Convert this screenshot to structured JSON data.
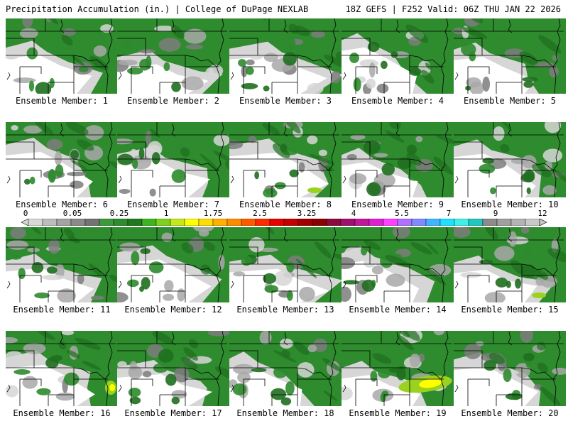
{
  "header": {
    "title_left": "Precipitation Accumulation (in.) | College of DuPage NEXLAB",
    "title_right": "18Z GEFS | F252 Valid: 06Z THU JAN 22 2026"
  },
  "members": [
    "Ensemble Member: 1",
    "Ensemble Member: 2",
    "Ensemble Member: 3",
    "Ensemble Member: 4",
    "Ensemble Member: 5",
    "Ensemble Member: 6",
    "Ensemble Member: 7",
    "Ensemble Member: 8",
    "Ensemble Member: 9",
    "Ensemble Member: 10",
    "Ensemble Member: 11",
    "Ensemble Member: 12",
    "Ensemble Member: 13",
    "Ensemble Member: 14",
    "Ensemble Member: 15",
    "Ensemble Member: 16",
    "Ensemble Member: 17",
    "Ensemble Member: 18",
    "Ensemble Member: 19",
    "Ensemble Member: 20"
  ],
  "colorbar": {
    "labels": [
      "0",
      "0.05",
      "0.25",
      "1",
      "1.75",
      "2.5",
      "3.25",
      "4",
      "5.5",
      "7",
      "9",
      "12"
    ],
    "colors": [
      "#d8d8d8",
      "#bdbdbd",
      "#a3a3a3",
      "#8a8a8a",
      "#737373",
      "#3c9a3c",
      "#2e8b2e",
      "#1f7a1f",
      "#3cb521",
      "#7fd11f",
      "#c4e81a",
      "#ffff00",
      "#ffdd00",
      "#ffb000",
      "#ff8c00",
      "#ff5a00",
      "#ff2a00",
      "#e60000",
      "#c40000",
      "#a30000",
      "#8b0000",
      "#8b0a3c",
      "#a0106e",
      "#c0189a",
      "#e020d0",
      "#ff40ff",
      "#b070ff",
      "#7f8cff",
      "#40b4ff",
      "#20e0ff",
      "#40f0e8",
      "#20c8c0",
      "#8c8c8c",
      "#a0a0a0",
      "#b4b4b4",
      "#c8c8c8"
    ]
  },
  "palette": {
    "white": "#ffffff",
    "light_gray": "#d6d6d6",
    "gray": "#a8a8a8",
    "dark_gray": "#7c7c7c",
    "green": "#2e8b2e",
    "dark_green": "#1f6f1f",
    "light_green": "#9bd21f",
    "yellow": "#ffff00",
    "boundary": "#000000"
  }
}
